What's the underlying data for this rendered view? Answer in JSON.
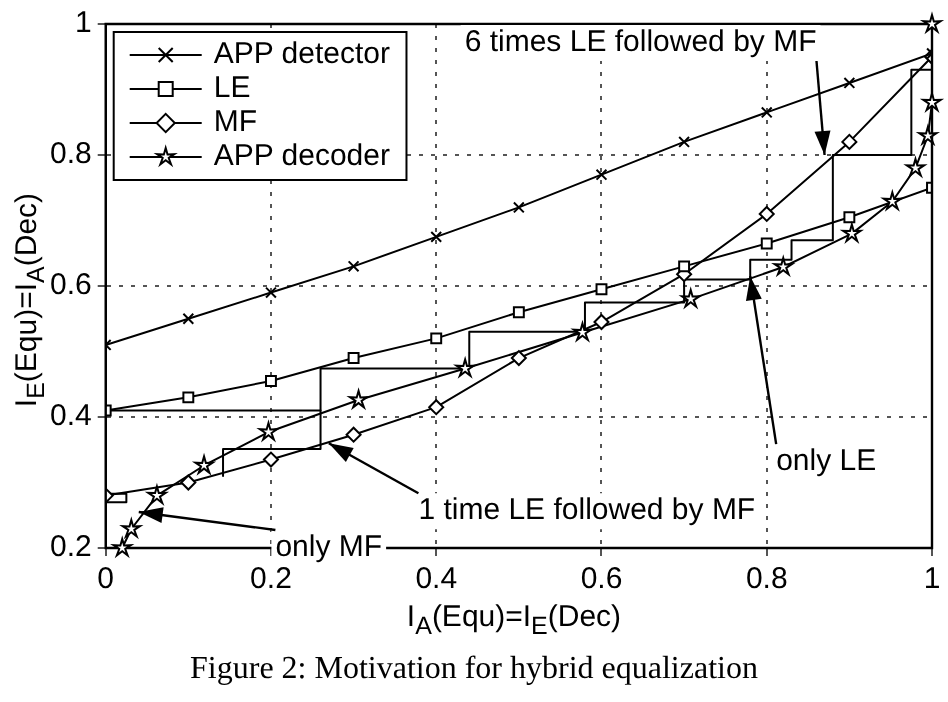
{
  "chart_data": {
    "type": "line",
    "xlabel": "I$_{A}$(Equ)=I$_{E}$(Dec)",
    "ylabel": "I$_{E}$(Equ)=I$_{A}$(Dec)",
    "xlim": [
      0,
      1
    ],
    "ylim": [
      0.2,
      1
    ],
    "xticks": [
      0,
      0.2,
      0.4,
      0.6,
      0.8,
      1
    ],
    "yticks": [
      0.2,
      0.4,
      0.6,
      0.8,
      1
    ],
    "grid": true,
    "legend": "top left",
    "series": [
      {
        "name": "APP detector",
        "color": "#000000",
        "marker": "cross",
        "x": [
          0,
          0.1,
          0.2,
          0.3,
          0.4,
          0.5,
          0.6,
          0.7,
          0.8,
          0.9,
          1
        ],
        "values": [
          0.51,
          0.55,
          0.59,
          0.63,
          0.675,
          0.72,
          0.77,
          0.82,
          0.865,
          0.91,
          0.955
        ]
      },
      {
        "name": "LE",
        "color": "#000000",
        "marker": "square",
        "x": [
          0,
          0.1,
          0.2,
          0.3,
          0.4,
          0.5,
          0.6,
          0.7,
          0.8,
          0.9,
          1
        ],
        "values": [
          0.41,
          0.43,
          0.455,
          0.49,
          0.52,
          0.56,
          0.595,
          0.63,
          0.665,
          0.705,
          0.75
        ]
      },
      {
        "name": "MF",
        "color": "#000000",
        "marker": "diamond",
        "x": [
          0,
          0.1,
          0.2,
          0.3,
          0.4,
          0.5,
          0.6,
          0.7,
          0.8,
          0.9,
          1
        ],
        "values": [
          0.28,
          0.3,
          0.335,
          0.373,
          0.415,
          0.49,
          0.545,
          0.618,
          0.71,
          0.82,
          0.95
        ]
      },
      {
        "name": "APP decoder",
        "color": "#000000",
        "marker": "star",
        "x": [
          0.02,
          0.031,
          0.062,
          0.119,
          0.197,
          0.306,
          0.435,
          0.577,
          0.708,
          0.82,
          0.903,
          0.952,
          0.98,
          0.995,
          1,
          1
        ],
        "values": [
          0.2,
          0.229,
          0.28,
          0.326,
          0.377,
          0.426,
          0.474,
          0.529,
          0.58,
          0.629,
          0.68,
          0.729,
          0.78,
          0.829,
          0.88,
          1
        ]
      },
      {
        "color": "#000000",
        "marker": "none",
        "x": [
          0,
          0.26,
          0.26,
          0.44,
          0.44,
          0.58,
          0.58,
          0.7,
          0.7,
          0.78,
          0.78,
          0.83,
          0.83,
          0.88,
          0.88,
          0.975,
          0.975,
          1
        ],
        "values": [
          0.41,
          0.41,
          0.474,
          0.474,
          0.53,
          0.53,
          0.575,
          0.575,
          0.61,
          0.61,
          0.64,
          0.64,
          0.67,
          0.67,
          0.8,
          0.8,
          0.93,
          0.93
        ]
      },
      {
        "color": "#000000",
        "marker": "none",
        "x": [
          0.26,
          0.26,
          0.142,
          0.142
        ],
        "values": [
          0.41,
          0.351,
          0.351,
          0.31
        ]
      },
      {
        "color": "#000000",
        "marker": "none",
        "x": [
          0,
          0.025,
          0.025,
          0
        ],
        "values": [
          0.283,
          0.283,
          0.27,
          0.27
        ]
      }
    ],
    "annotations": [
      {
        "text": "6 times LE followed by MF",
        "x": 0.87,
        "y": 0.8
      },
      {
        "text": "only LE",
        "x": 0.78,
        "y": 0.615
      },
      {
        "text": "1 time LE followed by MF",
        "x": 0.27,
        "y": 0.36
      },
      {
        "text": "only MF",
        "x": 0.04,
        "y": 0.255
      },
      "Figure 2: Motivation for hybrid equalization"
    ]
  }
}
